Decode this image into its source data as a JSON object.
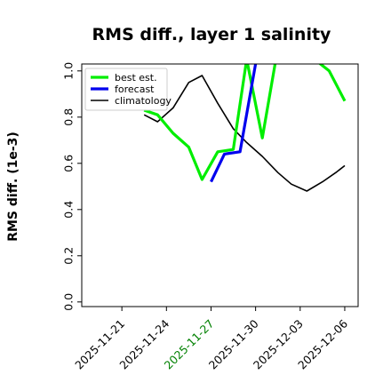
{
  "chart_data": {
    "type": "line",
    "title": "RMS diff., layer 1 salinity",
    "ylabel": "RMS diff. (1e-3)",
    "xlabel": "",
    "ylim": [
      -0.02,
      1.03
    ],
    "yticks": [
      0.0,
      0.2,
      0.4,
      0.6,
      0.8,
      1.0
    ],
    "ytick_labels": [
      "0.0",
      "0.2",
      "0.4",
      "0.6",
      "0.8",
      "1.0"
    ],
    "xlim": [
      -0.8,
      11.6
    ],
    "xticks": [
      1,
      3,
      5,
      7,
      9,
      11
    ],
    "xtick_labels": [
      "2025-11-21",
      "2025-11-24",
      "2025-11-27",
      "2025-11-30",
      "2025-12-03",
      "2025-12-06"
    ],
    "xtick_colors": [
      "#000000",
      "#000000",
      "#008000",
      "#000000",
      "#000000",
      "#000000"
    ],
    "legend_position": "upper left",
    "grid": false,
    "series": [
      {
        "name": "best est.",
        "color": "#00ee00",
        "x": [
          2.0,
          2.6,
          3.3,
          4.0,
          4.6,
          5.3,
          6.0,
          6.6,
          7.3,
          8.0,
          9.0,
          10.3,
          11.0
        ],
        "values": [
          0.83,
          0.81,
          0.73,
          0.67,
          0.53,
          0.65,
          0.66,
          1.05,
          0.71,
          1.1,
          1.1,
          1.0,
          0.87
        ]
      },
      {
        "name": "forecast",
        "color": "#0000ee",
        "x": [
          5.0,
          5.6,
          6.3,
          7.0,
          7.3
        ],
        "values": [
          0.52,
          0.64,
          0.65,
          1.03,
          1.12
        ]
      },
      {
        "name": "climatology",
        "color": "#000000",
        "x": [
          2.0,
          2.6,
          3.3,
          4.0,
          4.6,
          5.3,
          6.0,
          6.6,
          7.3,
          8.0,
          8.6,
          9.3,
          10.0,
          10.6,
          11.0
        ],
        "values": [
          0.81,
          0.78,
          0.84,
          0.95,
          0.98,
          0.86,
          0.75,
          0.69,
          0.63,
          0.56,
          0.51,
          0.48,
          0.52,
          0.56,
          0.59
        ]
      }
    ]
  }
}
